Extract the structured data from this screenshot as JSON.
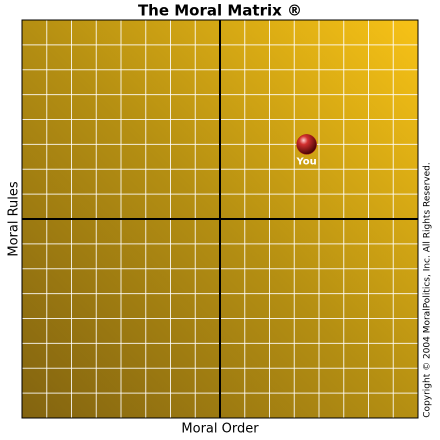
{
  "chart_data": {
    "type": "scatter",
    "title": "The Moral Matrix ®",
    "xlabel": "Moral Order",
    "ylabel": "Moral Rules",
    "copyright": "Copyright © 2004 MoralPolitics, Inc. All Rights Reserved.",
    "xlim": [
      -8,
      8
    ],
    "ylim": [
      -8,
      8
    ],
    "xticks": [
      -8,
      -7,
      -6,
      -5,
      -4,
      -3,
      -2,
      -1,
      0,
      1,
      2,
      3,
      4,
      5,
      6,
      7,
      8
    ],
    "yticks": [
      -8,
      -7,
      -6,
      -5,
      -4,
      -3,
      -2,
      -1,
      0,
      1,
      2,
      3,
      4,
      5,
      6,
      7,
      8
    ],
    "grid": true,
    "series": [
      {
        "name": "You",
        "color": "#b01818",
        "x": [
          3.5
        ],
        "values": [
          3.0
        ]
      }
    ]
  }
}
